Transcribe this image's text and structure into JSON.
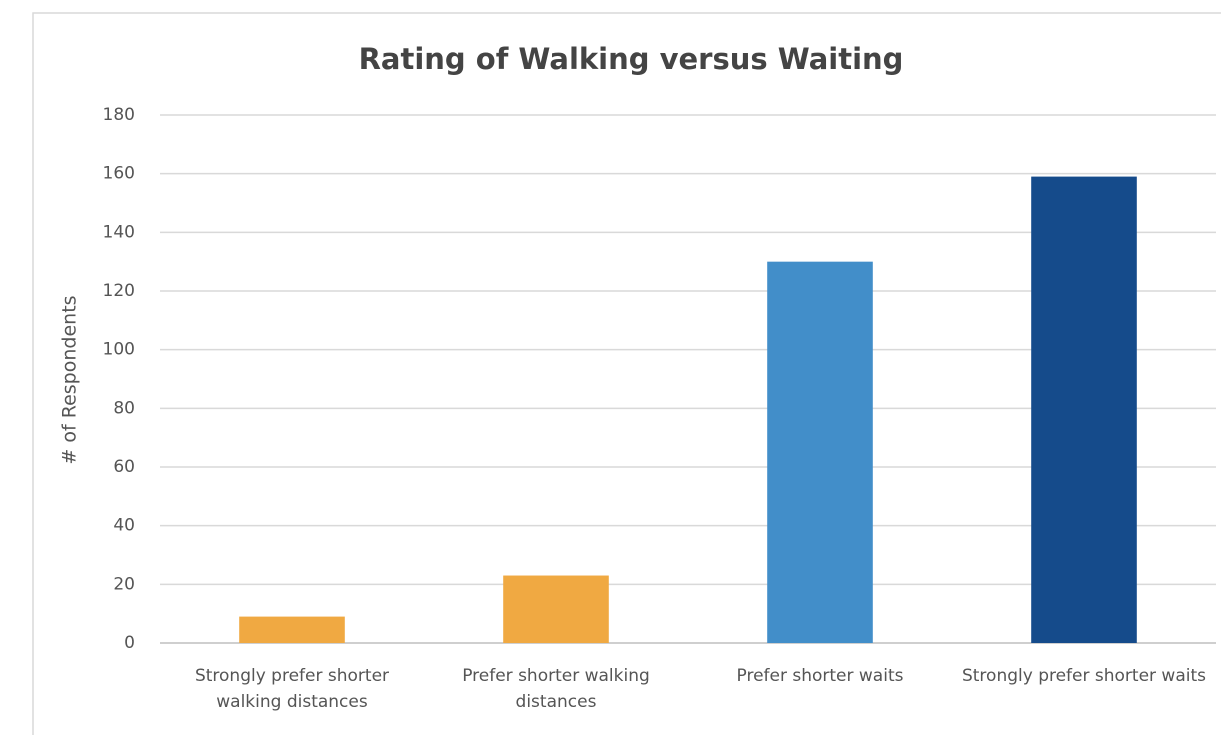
{
  "chart_data": {
    "type": "bar",
    "title": "Rating of Walking versus Waiting",
    "y_label": "# of Respondents",
    "categories": [
      "Strongly prefer shorter walking distances",
      "Prefer shorter walking distances",
      "Prefer shorter waits",
      "Strongly prefer shorter waits"
    ],
    "values": [
      9,
      23,
      130,
      159
    ],
    "colors": [
      "#f0a942",
      "#f0a942",
      "#428ec9",
      "#154b8b"
    ],
    "ylim": [
      0,
      180
    ],
    "yticks": [
      0,
      20,
      40,
      60,
      80,
      100,
      120,
      140,
      160,
      180
    ],
    "grid": true
  }
}
